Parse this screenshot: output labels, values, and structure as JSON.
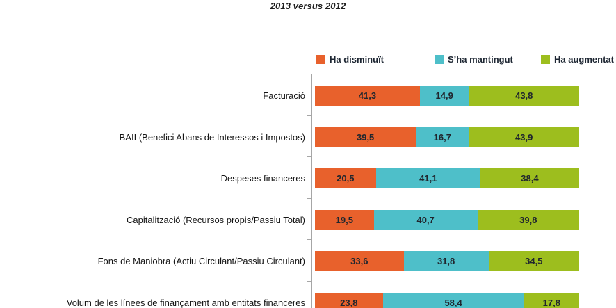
{
  "title": "2013 versus 2012",
  "colors": {
    "decreased": "#E8612C",
    "maintained": "#4EBFC9",
    "increased": "#9DBE1E",
    "axis": "#A6A6A6",
    "text_dark": "#1C1C1C"
  },
  "legend": [
    {
      "label": "Ha disminuït",
      "color": "#E8612C"
    },
    {
      "label": "S’ha mantingut",
      "color": "#4EBFC9"
    },
    {
      "label": "Ha augmentat",
      "color": "#9DBE1E"
    }
  ],
  "chart_data": {
    "type": "bar",
    "orientation": "horizontal",
    "stacked": true,
    "title": "2013 versus 2012",
    "xlim": [
      0,
      100
    ],
    "grid": false,
    "legend_position": "top",
    "decimal_separator": ",",
    "categories": [
      "Facturació",
      "BAII (Benefici Abans de Interessos i Impostos)",
      "Despeses financeres",
      "Capitalització (Recursos propis/Passiu Total)",
      "Fons de Maniobra (Actiu Circulant/Passiu Circulant)",
      "Volum de les línees de finançament amb entitats financeres"
    ],
    "series": [
      {
        "name": "Ha disminuït",
        "color": "#E8612C",
        "values": [
          41.3,
          39.5,
          20.5,
          19.5,
          33.6,
          23.8
        ],
        "display_values": [
          "41,3",
          "39,5",
          "20,5",
          "19,5",
          "33,6",
          "23,8"
        ]
      },
      {
        "name": "S’ha mantingut",
        "color": "#4EBFC9",
        "values": [
          14.9,
          16.7,
          41.1,
          40.7,
          31.8,
          58.4
        ],
        "display_values": [
          "14,9",
          "16,7",
          "41,1",
          "40,7",
          "31,8",
          "58,4"
        ]
      },
      {
        "name": "Ha augmentat",
        "color": "#9DBE1E",
        "values": [
          43.8,
          43.9,
          38.4,
          39.8,
          34.5,
          17.8
        ],
        "display_values": [
          "43,8",
          "43,9",
          "38,4",
          "39,8",
          "34,5",
          "17,8"
        ]
      }
    ]
  }
}
